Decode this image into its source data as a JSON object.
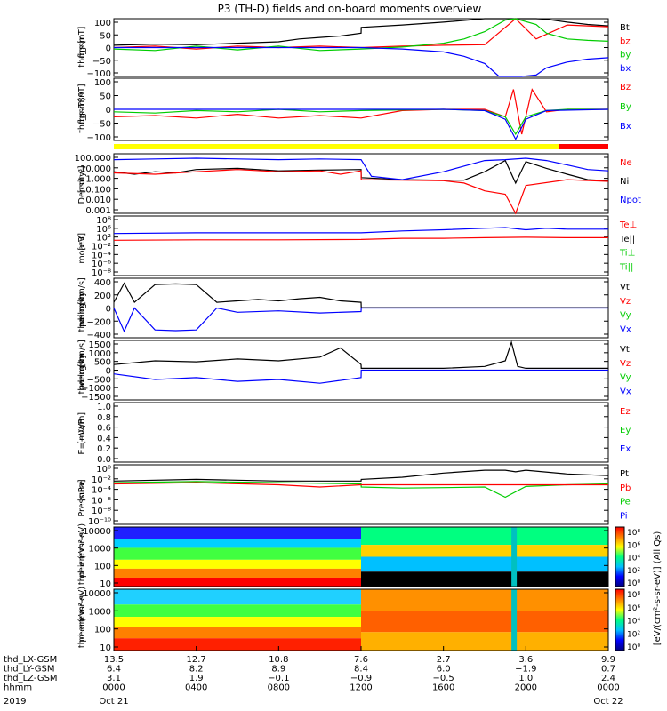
{
  "title": "P3 (TH-D) fields and on-board moments overview",
  "year": "2019",
  "panels": [
    {
      "id": "fgs",
      "ylabel": [
        "thd",
        "fgs",
        "gsm",
        "[nT]"
      ],
      "ticks": [
        "100",
        "50",
        "0",
        "−50",
        "−100"
      ],
      "legend": [
        {
          "text": "Bt",
          "color": "#000000"
        },
        {
          "text": "bz",
          "color": "#ff0000"
        },
        {
          "text": "by",
          "color": "#00cc00"
        },
        {
          "text": "bx",
          "color": "#0000ff"
        }
      ]
    },
    {
      "id": "fgs-dsl",
      "ylabel": [
        "thd",
        "fgs",
        "gsm",
        "-T89",
        "[nT]"
      ],
      "ticks": [
        "100",
        "50",
        "0",
        "−50",
        "−100"
      ],
      "legend": [
        {
          "text": "Bz",
          "color": "#ff0000"
        },
        {
          "text": "By",
          "color": "#00cc00"
        },
        {
          "text": "Bx",
          "color": "#0000ff"
        }
      ]
    },
    {
      "id": "density",
      "ylabel": [
        "Density",
        "[cm⁻³]"
      ],
      "ticks": [
        "100.000",
        "10.000",
        "1.000",
        "0.100",
        "0.010",
        "0.001"
      ],
      "legend": [
        {
          "text": "Ne",
          "color": "#ff0000"
        },
        {
          "text": "Ni",
          "color": "#000000"
        },
        {
          "text": "Npot",
          "color": "#0000ff"
        }
      ]
    },
    {
      "id": "temp",
      "ylabel": [
        "moat3",
        "[eV]"
      ],
      "ticks": [
        "10⁸",
        "10⁶",
        "10²",
        "10⁻²",
        "10⁻⁴",
        "10⁻⁶",
        "10⁻⁸"
      ],
      "legend": [
        {
          "text": "Te⊥",
          "color": "#ff0000"
        },
        {
          "text": "Te||",
          "color": "#000000"
        },
        {
          "text": "Ti⊥",
          "color": "#00cc00"
        },
        {
          "text": "Ti||",
          "color": "#00cc00"
        }
      ]
    },
    {
      "id": "peim-vel",
      "ylabel": [
        "thd",
        "peim",
        "velocity",
        "gsm",
        "[km/s]"
      ],
      "ticks": [
        "400",
        "200",
        "0",
        "−200",
        "−400"
      ],
      "legend": [
        {
          "text": "Vt",
          "color": "#000000"
        },
        {
          "text": "Vz",
          "color": "#ff0000"
        },
        {
          "text": "Vy",
          "color": "#00cc00"
        },
        {
          "text": "Vx",
          "color": "#0000ff"
        }
      ]
    },
    {
      "id": "peem-vel",
      "ylabel": [
        "thd",
        "peem",
        "velocity",
        "gsm",
        "[km/s]"
      ],
      "ticks": [
        "1500",
        "1000",
        "500",
        "0",
        "−500",
        "−1000",
        "−1500"
      ],
      "legend": [
        {
          "text": "Vt",
          "color": "#000000"
        },
        {
          "text": "Vz",
          "color": "#ff0000"
        },
        {
          "text": "Vy",
          "color": "#00cc00"
        },
        {
          "text": "Vx",
          "color": "#0000ff"
        }
      ]
    },
    {
      "id": "efield",
      "ylabel": [
        "E=−VxB",
        "[mV/m]"
      ],
      "ticks": [
        "1.0",
        "0.8",
        "0.6",
        "0.4",
        "0.2",
        "0.0"
      ],
      "legend": [
        {
          "text": "Ez",
          "color": "#ff0000"
        },
        {
          "text": "Ey",
          "color": "#00cc00"
        },
        {
          "text": "Ex",
          "color": "#0000ff"
        }
      ]
    },
    {
      "id": "pressure",
      "ylabel": [
        "Pressure",
        "[nPa]"
      ],
      "ticks": [
        "10⁰",
        "10⁻²",
        "10⁻⁴",
        "10⁻⁶",
        "10⁻⁸",
        "10⁻¹⁰"
      ],
      "legend": [
        {
          "text": "Pt",
          "color": "#000000"
        },
        {
          "text": "Pb",
          "color": "#ff0000"
        },
        {
          "text": "Pe",
          "color": "#00cc00"
        },
        {
          "text": "Pi",
          "color": "#0000ff"
        }
      ]
    },
    {
      "id": "peir",
      "ylabel": [
        "thd",
        "peir",
        "en",
        "eV",
        "(cm²-s-",
        "sr-eV)"
      ],
      "ticks": [
        "10000",
        "1000",
        "100",
        "10"
      ],
      "legend": []
    },
    {
      "id": "peer",
      "ylabel": [
        "thd",
        "peer",
        "en",
        "eV",
        "(cm²-s-",
        "sr-eV)"
      ],
      "ticks": [
        "10000",
        "1000",
        "100",
        "10"
      ],
      "legend": []
    }
  ],
  "colorbar": {
    "label": "[eV/(cm²-s-sr-eV)] (All Qs)",
    "ticks_top": [
      "10⁸",
      "10⁶",
      "10⁴",
      "10²",
      "10⁰"
    ],
    "ticks_bottom": [
      "10⁸",
      "10⁶",
      "10⁴",
      "10²",
      "10⁰"
    ]
  },
  "xaxis": {
    "rows": [
      {
        "label": "thd_LX-GSM",
        "values": [
          "13.5",
          "12.7",
          "10.8",
          "7.6",
          "2.7",
          "3.6",
          "9.9"
        ]
      },
      {
        "label": "thd_LY-GSM",
        "values": [
          "6.4",
          "8.2",
          "8.9",
          "8.4",
          "6.0",
          "−1.9",
          "0.7"
        ]
      },
      {
        "label": "thd_LZ-GSM",
        "values": [
          "3.1",
          "1.9",
          "−0.1",
          "−0.9",
          "−0.5",
          "1.0",
          "2.4"
        ]
      },
      {
        "label": "hhmm",
        "values": [
          "0000",
          "0400",
          "0800",
          "1200",
          "1600",
          "2000",
          "0000"
        ]
      }
    ],
    "dates": [
      {
        "text": "Oct 21",
        "index": 0
      },
      {
        "text": "Oct 22",
        "index": 6
      }
    ]
  },
  "chart_data": {
    "type": "line",
    "title": "P3 (TH-D) fields and on-board moments overview",
    "x_unit": "UT hhmm",
    "x_ticks": [
      "0000",
      "0400",
      "0800",
      "1200",
      "1600",
      "2000",
      "0000"
    ],
    "xlim_hours": [
      0,
      24
    ],
    "series": [
      {
        "panel": "fgs",
        "name": "Bt",
        "color": "#000000",
        "x": [
          0,
          2,
          4,
          6,
          8,
          9,
          10,
          11,
          12,
          12.01,
          14,
          16,
          18,
          19,
          19.5,
          19.8,
          20.5,
          21,
          22,
          23,
          24
        ],
        "y": [
          8,
          12,
          10,
          15,
          20,
          30,
          35,
          40,
          50,
          70,
          78,
          88,
          100,
          100,
          100,
          100,
          100,
          98,
          88,
          80,
          75
        ]
      },
      {
        "panel": "fgs",
        "name": "bz",
        "color": "#ff0000",
        "x": [
          0,
          2,
          4,
          6,
          8,
          10,
          12,
          14,
          16,
          18,
          19.5,
          20.5,
          22,
          24
        ],
        "y": [
          0,
          5,
          -5,
          5,
          0,
          5,
          0,
          5,
          8,
          10,
          100,
          30,
          78,
          72
        ]
      },
      {
        "panel": "fgs",
        "name": "by",
        "color": "#00cc00",
        "x": [
          0,
          2,
          4,
          6,
          8,
          10,
          12,
          14,
          16,
          17,
          18,
          19,
          19.5,
          20.5,
          21,
          22,
          23,
          24
        ],
        "y": [
          -5,
          -10,
          5,
          -8,
          5,
          -10,
          -5,
          2,
          15,
          30,
          55,
          95,
          100,
          80,
          50,
          30,
          25,
          22
        ]
      },
      {
        "panel": "fgs",
        "name": "bx",
        "color": "#0000ff",
        "x": [
          0,
          8,
          12,
          14,
          16,
          17,
          18,
          18.7,
          19.2,
          19.8,
          20.5,
          21,
          22,
          23,
          24
        ],
        "y": [
          0,
          0,
          0,
          -5,
          -15,
          -30,
          -55,
          -100,
          -100,
          -100,
          -95,
          -70,
          -50,
          -40,
          -35
        ]
      },
      {
        "panel": "fgs-dsl",
        "name": "Bz",
        "color": "#ff0000",
        "x": [
          0,
          2,
          4,
          6,
          8,
          10,
          12,
          14,
          16,
          18,
          19,
          19.4,
          19.8,
          20.3,
          21,
          22,
          24
        ],
        "y": [
          -30,
          -25,
          -35,
          -20,
          -35,
          -25,
          -35,
          -5,
          0,
          0,
          -30,
          80,
          -100,
          80,
          -10,
          0,
          0
        ]
      },
      {
        "panel": "fgs-dsl",
        "name": "By",
        "color": "#00cc00",
        "x": [
          0,
          2,
          4,
          6,
          8,
          10,
          12,
          14,
          16,
          18,
          19,
          19.5,
          20,
          21,
          22,
          24
        ],
        "y": [
          -10,
          -15,
          -5,
          -10,
          0,
          -10,
          -5,
          -2,
          0,
          -5,
          -30,
          -100,
          -30,
          -5,
          0,
          0
        ]
      },
      {
        "panel": "fgs-dsl",
        "name": "Bx",
        "color": "#0000ff",
        "x": [
          0,
          6,
          12,
          16,
          18,
          19,
          19.5,
          20,
          21,
          24
        ],
        "y": [
          0,
          0,
          0,
          0,
          -5,
          -40,
          -120,
          -40,
          -5,
          0
        ]
      },
      {
        "panel": "density",
        "name": "Ni",
        "color": "#000000",
        "x": [
          0,
          1,
          2,
          3,
          4,
          6,
          8,
          10,
          12,
          12.01,
          14,
          16,
          17,
          18,
          19,
          19.5,
          20,
          21,
          22,
          23,
          24
        ],
        "y": [
          5,
          3,
          5,
          4,
          8,
          10,
          6,
          7,
          8,
          1.5,
          1,
          0.9,
          0.9,
          5,
          50,
          0.5,
          40,
          10,
          3,
          1,
          0.8
        ]
      },
      {
        "panel": "density",
        "name": "Ne",
        "color": "#ff0000",
        "x": [
          0,
          2,
          4,
          6,
          8,
          10,
          11,
          12,
          12.01,
          14,
          16,
          17,
          18,
          19,
          19.5,
          20,
          22,
          24
        ],
        "y": [
          4,
          3,
          5,
          8,
          5,
          6,
          3,
          6,
          1,
          0.9,
          0.8,
          0.5,
          0.1,
          0.05,
          0.001,
          0.3,
          1,
          0.7
        ]
      },
      {
        "panel": "density",
        "name": "Npot",
        "color": "#0000ff",
        "x": [
          0,
          2,
          4,
          6,
          8,
          10,
          12,
          12.5,
          14,
          16,
          18,
          19,
          20,
          21,
          22,
          23,
          24
        ],
        "y": [
          60,
          70,
          80,
          70,
          60,
          70,
          60,
          2,
          1,
          5,
          50,
          60,
          80,
          50,
          20,
          8,
          6
        ]
      },
      {
        "panel": "temp",
        "name": "Ti⊥",
        "color": "#0000ff",
        "x": [
          0,
          4,
          8,
          12,
          14,
          16,
          18,
          19,
          20,
          21,
          22,
          24
        ],
        "y": [
          2000,
          3000,
          3000,
          3000,
          10000,
          20000,
          50000,
          80000,
          20000,
          50000,
          30000,
          30000
        ]
      },
      {
        "panel": "temp",
        "name": "Te⊥",
        "color": "#ff0000",
        "x": [
          0,
          4,
          8,
          12,
          14,
          16,
          18,
          20,
          22,
          24
        ],
        "y": [
          30,
          40,
          40,
          50,
          100,
          100,
          150,
          200,
          150,
          150
        ]
      },
      {
        "panel": "peim-vel",
        "name": "Vt",
        "color": "#000000",
        "x": [
          0,
          0.5,
          1,
          2,
          3,
          4,
          5,
          6,
          7,
          8,
          9,
          10,
          11,
          12,
          12.01,
          24
        ],
        "y": [
          80,
          350,
          80,
          330,
          340,
          330,
          80,
          100,
          120,
          100,
          130,
          150,
          100,
          80,
          5,
          5
        ]
      },
      {
        "panel": "peim-vel",
        "name": "Vx",
        "color": "#0000ff",
        "x": [
          0,
          0.5,
          1,
          2,
          3,
          4,
          5,
          6,
          8,
          10,
          12,
          12.01,
          24
        ],
        "y": [
          0,
          -330,
          0,
          -310,
          -320,
          -310,
          0,
          -60,
          -40,
          -70,
          -50,
          0,
          0
        ]
      },
      {
        "panel": "peem-vel",
        "name": "Vt",
        "color": "#000000",
        "x": [
          0,
          2,
          4,
          6,
          8,
          10,
          11,
          12,
          12.01,
          16,
          18,
          19,
          19.3,
          19.6,
          20,
          24
        ],
        "y": [
          300,
          500,
          450,
          600,
          500,
          700,
          1200,
          300,
          100,
          100,
          200,
          500,
          1500,
          200,
          100,
          100
        ]
      },
      {
        "panel": "peem-vel",
        "name": "Vx",
        "color": "#0000ff",
        "x": [
          0,
          2,
          4,
          6,
          8,
          10,
          12,
          12.01,
          24
        ],
        "y": [
          -200,
          -500,
          -400,
          -600,
          -500,
          -700,
          -400,
          0,
          0
        ]
      },
      {
        "panel": "pressure",
        "name": "Pt",
        "color": "#000000",
        "x": [
          0,
          4,
          8,
          12,
          12.01,
          14,
          16,
          18,
          19,
          19.5,
          20,
          22,
          24
        ],
        "y": [
          0.01,
          0.02,
          0.01,
          0.01,
          0.02,
          0.05,
          0.3,
          1,
          1,
          0.5,
          1,
          0.2,
          0.1
        ]
      },
      {
        "panel": "pressure",
        "name": "Pe",
        "color": "#00cc00",
        "x": [
          0,
          4,
          8,
          12,
          12.01,
          14,
          16,
          18,
          19,
          20,
          22,
          24
        ],
        "y": [
          0.005,
          0.008,
          0.005,
          0.003,
          0.0008,
          0.0005,
          0.0006,
          0.0008,
          1e-05,
          0.001,
          0.002,
          0.003
        ]
      },
      {
        "panel": "pressure",
        "name": "Pb",
        "color": "#ff0000",
        "x": [
          0,
          4,
          8,
          10,
          12,
          12.01,
          24
        ],
        "y": [
          0.003,
          0.005,
          0.002,
          0.0008,
          0.002,
          0.002,
          0.002
        ]
      }
    ],
    "spectrograms": [
      {
        "panel": "peir",
        "y_unit": "eV",
        "ylim": [
          5,
          25000
        ],
        "log": true
      },
      {
        "panel": "peer",
        "y_unit": "eV",
        "ylim": [
          5,
          25000
        ],
        "log": true
      }
    ],
    "mode_bar": [
      {
        "from": 0,
        "to": 21.6,
        "color": "#ffff00"
      },
      {
        "from": 21.6,
        "to": 24,
        "color": "#ff0000"
      }
    ]
  }
}
